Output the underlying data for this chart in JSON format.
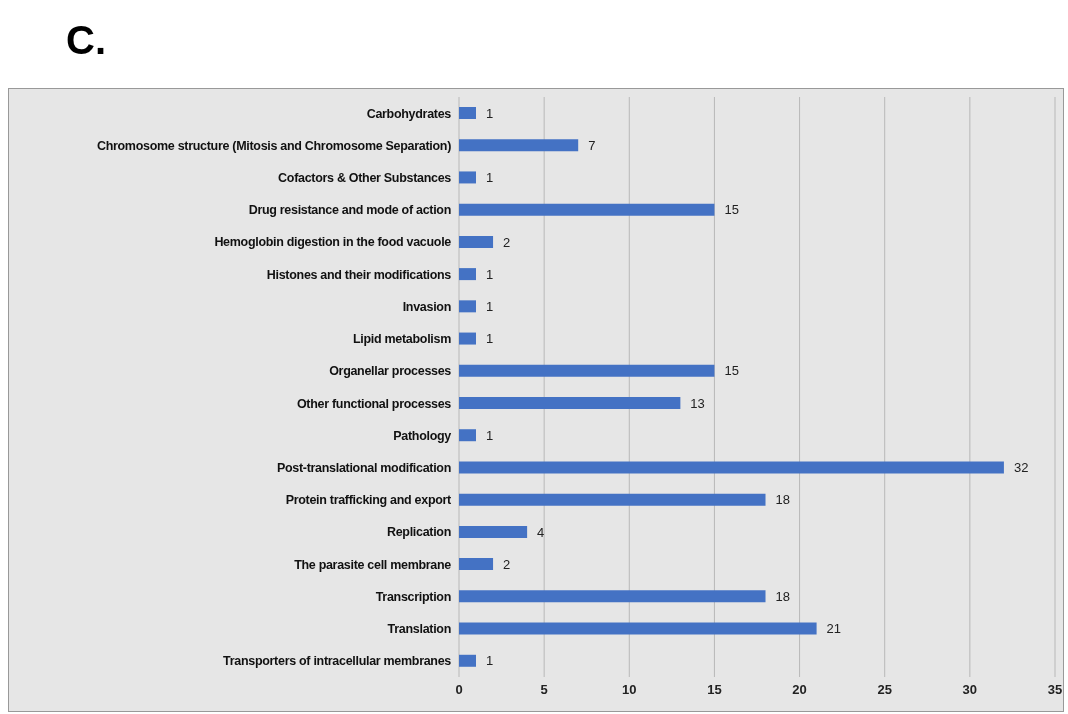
{
  "chart_data": {
    "type": "bar",
    "title": "C.",
    "orientation": "horizontal",
    "categories": [
      "Carbohydrates",
      "Chromosome structure (Mitosis and Chromosome Separation)",
      "Cofactors & Other Substances",
      "Drug resistance and mode of action",
      "Hemoglobin digestion in the food vacuole",
      "Histones and their modifications",
      "Invasion",
      "Lipid metabolism",
      "Organellar processes",
      "Other functional processes",
      "Pathology",
      "Post-translational modification",
      "Protein trafficking and export",
      "Replication",
      "The parasite cell membrane",
      "Transcription",
      "Translation",
      "Transporters of intracellular membranes"
    ],
    "values": [
      1,
      7,
      1,
      15,
      2,
      1,
      1,
      1,
      15,
      13,
      1,
      32,
      18,
      4,
      2,
      18,
      21,
      1
    ],
    "color": "#4472c4",
    "data_labels": true,
    "grid": "x",
    "xlim": [
      0,
      35
    ],
    "xticks": [
      0,
      5,
      10,
      15,
      20,
      25,
      30,
      35
    ]
  }
}
